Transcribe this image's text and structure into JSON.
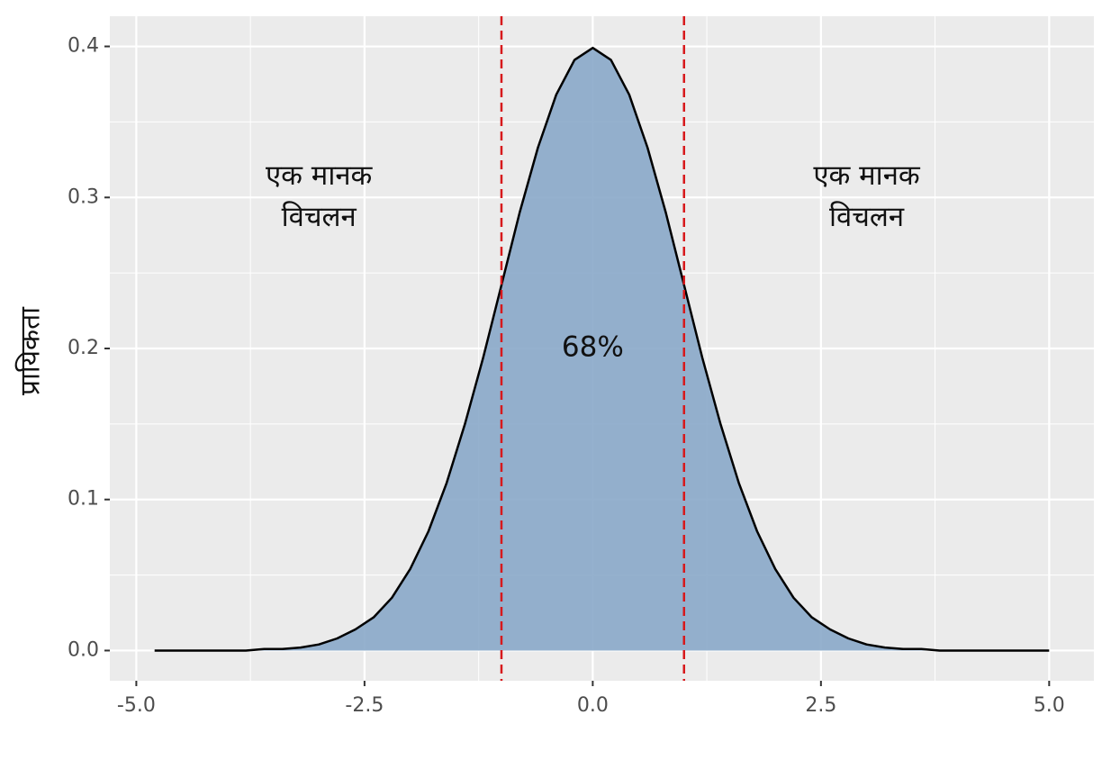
{
  "chart_data": {
    "type": "area",
    "y_label": "प्रायिकता",
    "x": [
      -4.8,
      -4.6,
      -4.4,
      -4.2,
      -4.0,
      -3.8,
      -3.6,
      -3.4,
      -3.2,
      -3.0,
      -2.8,
      -2.6,
      -2.4,
      -2.2,
      -2.0,
      -1.8,
      -1.6,
      -1.4,
      -1.2,
      -1.0,
      -0.8,
      -0.6,
      -0.4,
      -0.2,
      0,
      0.2,
      0.4,
      0.6,
      0.8,
      1.0,
      1.2,
      1.4,
      1.6,
      1.8,
      2.0,
      2.2,
      2.4,
      2.6,
      2.8,
      3.0,
      3.2,
      3.4,
      3.6,
      3.8,
      4.0,
      4.2,
      4.4,
      4.6,
      4.8,
      5.0
    ],
    "values": [
      0,
      0,
      0,
      0,
      0,
      0,
      0.001,
      0.001,
      0.002,
      0.004,
      0.008,
      0.014,
      0.022,
      0.035,
      0.054,
      0.079,
      0.111,
      0.15,
      0.194,
      0.242,
      0.29,
      0.333,
      0.368,
      0.391,
      0.399,
      0.391,
      0.368,
      0.333,
      0.29,
      0.242,
      0.194,
      0.15,
      0.111,
      0.079,
      0.054,
      0.035,
      0.022,
      0.014,
      0.008,
      0.004,
      0.002,
      0.001,
      0.001,
      0,
      0,
      0,
      0,
      0,
      0,
      0
    ],
    "color": "#8aa9c9",
    "line_color": "#000000",
    "vlines": [
      -1,
      1
    ],
    "vline_color": "#d7191c",
    "annotations": [
      {
        "lines": [
          "एक मानक",
          "विचलन"
        ],
        "x": -3,
        "y": 0.3
      },
      {
        "lines": [
          "68%"
        ],
        "x": 0,
        "y": 0.2
      },
      {
        "lines": [
          "एक मानक",
          "विचलन"
        ],
        "x": 3,
        "y": 0.3
      }
    ],
    "xlim": [
      -5.29,
      5.49
    ],
    "ylim": [
      -0.02,
      0.42
    ],
    "xticks": [
      {
        "value": -5,
        "label": "-5.0"
      },
      {
        "value": -2.5,
        "label": "-2.5"
      },
      {
        "value": 0,
        "label": "0.0"
      },
      {
        "value": 2.5,
        "label": "2.5"
      },
      {
        "value": 5,
        "label": "5.0"
      }
    ],
    "yticks": [
      {
        "value": 0,
        "label": "0.0"
      },
      0.1,
      0.2,
      0.3,
      0.4
    ],
    "grid": true
  }
}
